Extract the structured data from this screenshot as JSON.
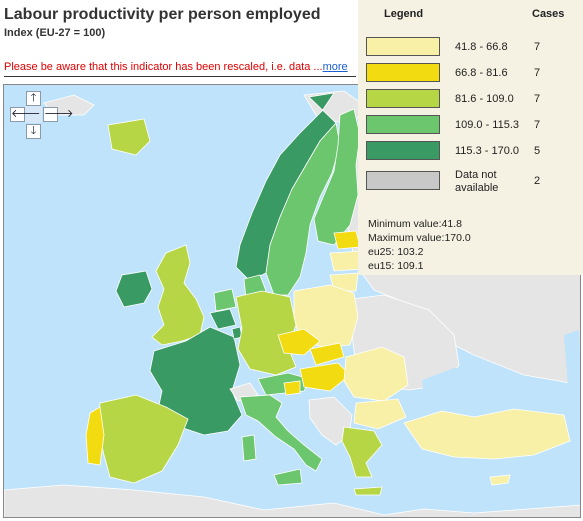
{
  "title": "Labour productivity per person employed",
  "subtitle": "Index (EU-27 = 100)",
  "notice": {
    "text": "Please be aware that this indicator has been rescaled, i.e. data ...",
    "link": "more"
  },
  "pan_controls": {
    "up": "🡑",
    "down": "🡓",
    "left": "🡐",
    "right": "🡒"
  },
  "legend": {
    "title": "Legend",
    "cases_header": "Cases",
    "classes": [
      {
        "range": "41.8 - 66.8",
        "cases": "7",
        "color": "#f7f0a6"
      },
      {
        "range": "66.8 - 81.6",
        "cases": "7",
        "color": "#f2db10"
      },
      {
        "range": "81.6 - 109.0",
        "cases": "7",
        "color": "#b7d645"
      },
      {
        "range": "109.0 - 115.3",
        "cases": "7",
        "color": "#6cc66e"
      },
      {
        "range": "115.3 - 170.0",
        "cases": "5",
        "color": "#3a9a64"
      }
    ],
    "no_data": {
      "label_line1": "Data not",
      "label_line2": "available",
      "cases": "2",
      "color": "#c8c8c8"
    },
    "stats": {
      "min": "Minimum value:41.8",
      "max": "Maximum value:170.0",
      "eu25": "eu25: 103.2",
      "eu15": "eu15: 109.1"
    }
  },
  "colors": {
    "sea": "#bfe3fa",
    "non_eu_land": "#e5e5e5",
    "border": "#ffffff"
  }
}
